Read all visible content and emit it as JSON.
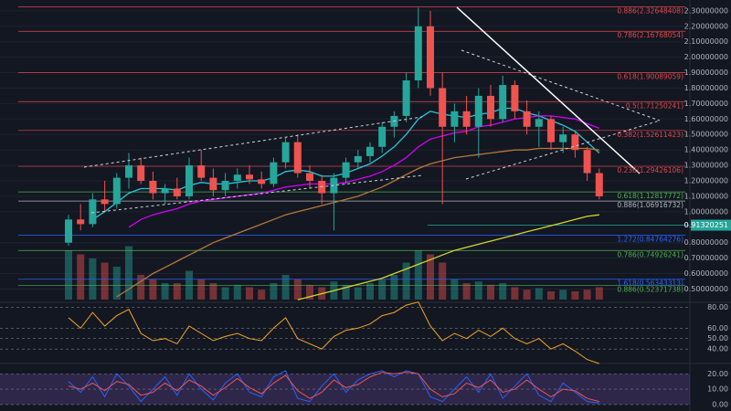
{
  "chart_data": {
    "type": "candlestick",
    "categories": [
      null,
      null,
      null,
      null,
      null,
      null,
      null,
      null,
      null,
      null,
      null,
      null,
      null,
      null,
      null,
      null,
      null,
      null,
      null,
      null,
      null,
      null,
      null,
      null,
      null,
      null,
      null,
      null,
      null,
      null,
      null,
      null,
      null,
      null,
      null,
      null,
      null,
      null,
      null,
      null,
      null,
      null,
      null,
      null,
      null
    ],
    "open": [
      0.8,
      0.95,
      0.92,
      1.08,
      1.05,
      1.22,
      1.3,
      1.2,
      1.12,
      1.15,
      1.1,
      1.3,
      1.22,
      1.14,
      1.2,
      1.24,
      1.21,
      1.18,
      1.32,
      1.45,
      1.25,
      1.2,
      1.12,
      1.22,
      1.32,
      1.36,
      1.42,
      1.55,
      1.62,
      1.85,
      2.2,
      1.8,
      1.55,
      1.65,
      1.55,
      1.75,
      1.6,
      1.82,
      1.65,
      1.55,
      1.6,
      1.45,
      1.5,
      1.4,
      1.25
    ],
    "high": [
      0.98,
      1.05,
      1.12,
      1.2,
      1.25,
      1.38,
      1.35,
      1.26,
      1.18,
      1.22,
      1.35,
      1.4,
      1.28,
      1.25,
      1.28,
      1.3,
      1.26,
      1.35,
      1.48,
      1.5,
      1.3,
      1.24,
      1.25,
      1.35,
      1.4,
      1.45,
      1.58,
      1.65,
      1.9,
      2.32,
      2.3,
      1.9,
      1.7,
      1.75,
      1.8,
      1.82,
      1.88,
      1.85,
      1.72,
      1.65,
      1.62,
      1.55,
      1.52,
      1.42,
      1.28
    ],
    "low": [
      0.78,
      0.88,
      0.9,
      1.0,
      1.02,
      1.15,
      1.18,
      1.08,
      1.05,
      1.08,
      1.08,
      1.2,
      1.1,
      1.1,
      1.15,
      1.18,
      1.15,
      1.16,
      1.28,
      1.22,
      1.15,
      1.05,
      0.88,
      1.18,
      1.28,
      1.32,
      1.38,
      1.48,
      1.58,
      1.8,
      1.75,
      1.05,
      1.45,
      1.5,
      1.35,
      1.55,
      1.58,
      1.6,
      1.5,
      1.42,
      1.4,
      1.38,
      1.35,
      1.2,
      1.08
    ],
    "close": [
      0.95,
      0.92,
      1.08,
      1.05,
      1.22,
      1.3,
      1.2,
      1.12,
      1.15,
      1.1,
      1.3,
      1.22,
      1.14,
      1.2,
      1.24,
      1.21,
      1.18,
      1.32,
      1.45,
      1.25,
      1.2,
      1.12,
      1.22,
      1.32,
      1.36,
      1.42,
      1.55,
      1.62,
      1.85,
      2.2,
      1.8,
      1.55,
      1.65,
      1.55,
      1.75,
      1.6,
      1.82,
      1.65,
      1.55,
      1.6,
      1.45,
      1.5,
      1.4,
      1.25,
      1.1
    ],
    "up_color": "#26a69a",
    "down_color": "#ef5350",
    "ylim": [
      0.42,
      2.37
    ],
    "yticks": [
      {
        "value": 0.5,
        "label": "0.50000000"
      },
      {
        "value": 0.6,
        "label": "0.60000000"
      },
      {
        "value": 0.7,
        "label": "0.70000000"
      },
      {
        "value": 0.8,
        "label": "0.80000000"
      },
      {
        "value": 1.0,
        "label": "1.00000000"
      },
      {
        "value": 1.1,
        "label": "1.10000000"
      },
      {
        "value": 1.2,
        "label": "1.20000000"
      },
      {
        "value": 1.3,
        "label": "1.30000000"
      },
      {
        "value": 1.4,
        "label": "1.40000000"
      },
      {
        "value": 1.5,
        "label": "1.50000000"
      },
      {
        "value": 1.6,
        "label": "1.60000000"
      },
      {
        "value": 1.7,
        "label": "1.70000000"
      },
      {
        "value": 1.8,
        "label": "1.80000000"
      },
      {
        "value": 1.9,
        "label": "1.90000000"
      },
      {
        "value": 2.0,
        "label": "2.00000000"
      },
      {
        "value": 2.1,
        "label": "2.10000000"
      },
      {
        "value": 2.2,
        "label": "2.20000000"
      },
      {
        "value": 2.3,
        "label": "2.30000000"
      }
    ],
    "moving_averages": [
      {
        "color": "#26c6da",
        "values": [
          null,
          null,
          0.95,
          1.0,
          1.06,
          1.12,
          1.15,
          1.15,
          1.15,
          1.14,
          1.17,
          1.19,
          1.18,
          1.18,
          1.19,
          1.2,
          1.2,
          1.22,
          1.26,
          1.27,
          1.26,
          1.23,
          1.23,
          1.25,
          1.28,
          1.31,
          1.36,
          1.42,
          1.5,
          1.6,
          1.65,
          1.63,
          1.62,
          1.61,
          1.63,
          1.64,
          1.67,
          1.67,
          1.64,
          1.62,
          1.59,
          1.56,
          1.52,
          1.45,
          1.38
        ]
      },
      {
        "color": "#d500f9",
        "values": [
          null,
          null,
          null,
          null,
          null,
          0.9,
          0.95,
          0.98,
          1.0,
          1.02,
          1.05,
          1.07,
          1.08,
          1.09,
          1.1,
          1.11,
          1.12,
          1.14,
          1.16,
          1.17,
          1.18,
          1.18,
          1.18,
          1.19,
          1.21,
          1.23,
          1.26,
          1.3,
          1.35,
          1.42,
          1.47,
          1.49,
          1.51,
          1.52,
          1.55,
          1.56,
          1.58,
          1.6,
          1.61,
          1.62,
          1.62,
          1.61,
          1.6,
          1.57,
          1.54
        ]
      },
      {
        "color": "#b5773a",
        "values": [
          null,
          null,
          null,
          null,
          0.45,
          0.5,
          0.55,
          0.6,
          0.64,
          0.68,
          0.72,
          0.76,
          0.8,
          0.83,
          0.86,
          0.89,
          0.92,
          0.95,
          0.98,
          1.0,
          1.02,
          1.04,
          1.06,
          1.08,
          1.1,
          1.13,
          1.16,
          1.2,
          1.24,
          1.28,
          1.31,
          1.33,
          1.35,
          1.36,
          1.37,
          1.38,
          1.39,
          1.4,
          1.4,
          1.41,
          1.41,
          1.41,
          1.41,
          1.41,
          1.4
        ]
      },
      {
        "color": "#d4d42c",
        "values": [
          null,
          null,
          null,
          null,
          null,
          null,
          null,
          null,
          null,
          null,
          null,
          null,
          null,
          null,
          null,
          null,
          null,
          null,
          null,
          0.43,
          0.45,
          0.47,
          0.49,
          0.51,
          0.53,
          0.55,
          0.57,
          0.6,
          0.63,
          0.66,
          0.69,
          0.72,
          0.75,
          0.77,
          0.79,
          0.81,
          0.83,
          0.85,
          0.87,
          0.89,
          0.91,
          0.93,
          0.95,
          0.97,
          0.98
        ]
      }
    ],
    "volume": {
      "ylim": [
        0,
        100
      ],
      "values": [
        60,
        55,
        50,
        45,
        40,
        65,
        30,
        25,
        20,
        20,
        35,
        25,
        20,
        15,
        18,
        15,
        12,
        20,
        30,
        25,
        18,
        15,
        22,
        18,
        15,
        20,
        25,
        30,
        45,
        60,
        55,
        45,
        25,
        20,
        22,
        18,
        20,
        15,
        12,
        14,
        10,
        12,
        10,
        12,
        15
      ]
    },
    "fib_levels": [
      {
        "label": "0.886(2.32648408)",
        "price": 2.32648408,
        "color": "#e0474c"
      },
      {
        "label": "0.786(2.16768054)",
        "price": 2.16768054,
        "color": "#e0474c"
      },
      {
        "label": "0.618(1.90089059)",
        "price": 1.90089059,
        "color": "#e0474c"
      },
      {
        "label": "0.5(1.71250241)",
        "price": 1.71250241,
        "color": "#e0474c"
      },
      {
        "label": "0.382(1.52611423)",
        "price": 1.52611423,
        "color": "#e0474c"
      },
      {
        "label": "0.236(1.29426106)",
        "price": 1.29426106,
        "color": "#e0474c"
      },
      {
        "label": "0.618(1.12817772)",
        "price": 1.12817772,
        "color": "#4caf50"
      },
      {
        "label": "0.886(1.06916732)",
        "price": 1.06916732,
        "color": "#b2b5be"
      },
      {
        "label": "1.272(0.84764276)",
        "price": 0.84764276,
        "color": "#2962ff"
      },
      {
        "label": "0.786(0.74926241)",
        "price": 0.74926241,
        "color": "#4caf50"
      },
      {
        "label": "1.618(0.56343313)",
        "price": 0.56343313,
        "color": "#2962ff"
      },
      {
        "label": "0.886(0.52371738)",
        "price": 0.52371738,
        "color": "#4caf50"
      }
    ],
    "last_price": 0.91320251,
    "rsi": {
      "color": "#f5a623",
      "ylim": [
        27,
        83
      ],
      "yticks": [
        {
          "value": 80,
          "label": "80.00"
        },
        {
          "value": 60,
          "label": "60.00"
        },
        {
          "value": 50,
          "label": "50.00"
        },
        {
          "value": 40,
          "label": "40.00"
        }
      ],
      "values": [
        70,
        60,
        75,
        62,
        72,
        78,
        55,
        48,
        50,
        45,
        62,
        55,
        48,
        52,
        55,
        50,
        48,
        60,
        70,
        50,
        45,
        40,
        52,
        58,
        60,
        64,
        72,
        75,
        82,
        85,
        62,
        48,
        55,
        50,
        58,
        52,
        60,
        50,
        45,
        50,
        40,
        45,
        38,
        30,
        26
      ]
    },
    "stoch": {
      "ylim": [
        -4.2,
        25.5
      ],
      "yticks": [
        {
          "value": 20,
          "label": "20.00"
        },
        {
          "value": 10,
          "label": "10.00"
        },
        {
          "value": 0,
          "label": "0.00"
        }
      ],
      "series": [
        {
          "color": "#2962ff",
          "values": [
            15,
            8,
            18,
            5,
            20,
            12,
            2,
            10,
            18,
            6,
            20,
            10,
            3,
            14,
            20,
            8,
            5,
            18,
            22,
            4,
            2,
            12,
            20,
            8,
            16,
            20,
            22,
            18,
            22,
            20,
            5,
            2,
            10,
            18,
            8,
            20,
            4,
            12,
            20,
            6,
            2,
            14,
            8,
            2,
            1
          ]
        },
        {
          "color": "#ef5350",
          "values": [
            12,
            10,
            14,
            9,
            15,
            13,
            6,
            8,
            14,
            9,
            16,
            12,
            6,
            11,
            17,
            11,
            7,
            14,
            19,
            9,
            4,
            8,
            16,
            11,
            13,
            18,
            21,
            20,
            21,
            20,
            10,
            5,
            7,
            14,
            11,
            16,
            8,
            10,
            16,
            10,
            5,
            10,
            9,
            4,
            2
          ]
        }
      ]
    }
  }
}
